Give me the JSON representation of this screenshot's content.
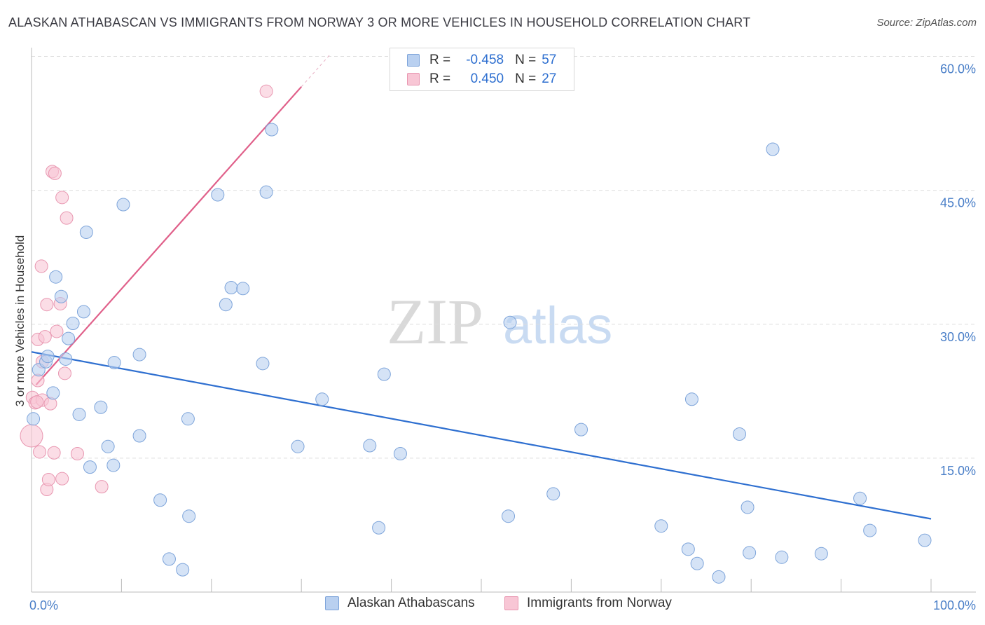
{
  "title": "ALASKAN ATHABASCAN VS IMMIGRANTS FROM NORWAY 3 OR MORE VEHICLES IN HOUSEHOLD CORRELATION CHART",
  "source": "Source: ZipAtlas.com",
  "watermark": {
    "zip": "ZIP",
    "atlas": "atlas"
  },
  "legend_top": [
    {
      "r_label": "R =",
      "r_value": "-0.458",
      "n_label": "N =",
      "n_value": "57"
    },
    {
      "r_label": "R =",
      "r_value": "0.450",
      "n_label": "N =",
      "n_value": "27"
    }
  ],
  "legend_bottom": [
    "Alaskan Athabascans",
    "Immigrants from Norway"
  ],
  "colors": {
    "blue_fill": "#b9d0f0",
    "blue_stroke": "#7da4da",
    "blue_line": "#2e6fd0",
    "pink_fill": "#f8c6d5",
    "pink_stroke": "#e896b0",
    "pink_line": "#e0608a",
    "grid": "#dedede",
    "tick_text": "#4a7fc8"
  },
  "chart_data": {
    "type": "scatter",
    "title": "ALASKAN ATHABASCAN VS IMMIGRANTS FROM NORWAY 3 OR MORE VEHICLES IN HOUSEHOLD CORRELATION CHART",
    "xlabel": "",
    "ylabel": "3 or more Vehicles in Household",
    "xlim": [
      0,
      100
    ],
    "ylim": [
      0,
      60
    ],
    "x_tick_labels": [
      "0.0%",
      "100.0%"
    ],
    "y_ticks": [
      15,
      30,
      45,
      60
    ],
    "y_tick_labels": [
      "15.0%",
      "30.0%",
      "45.0%",
      "60.0%"
    ],
    "grid": true,
    "legend_position": "top-center",
    "series": [
      {
        "name": "Alaskan Athabascans",
        "r": -0.458,
        "n": 57,
        "trend": {
          "x": [
            0,
            100
          ],
          "y": [
            26.9,
            8.2
          ]
        },
        "points": [
          [
            0.2,
            19.4
          ],
          [
            0.8,
            24.9
          ],
          [
            1.6,
            25.8
          ],
          [
            1.8,
            26.4
          ],
          [
            2.4,
            22.3
          ],
          [
            2.7,
            35.3
          ],
          [
            3.3,
            33.1
          ],
          [
            3.8,
            26.1
          ],
          [
            4.1,
            28.4
          ],
          [
            4.6,
            30.1
          ],
          [
            5.3,
            19.9
          ],
          [
            5.8,
            31.4
          ],
          [
            6.1,
            40.3
          ],
          [
            6.5,
            14.0
          ],
          [
            7.7,
            20.7
          ],
          [
            8.5,
            16.3
          ],
          [
            9.1,
            14.2
          ],
          [
            9.2,
            25.7
          ],
          [
            10.2,
            43.4
          ],
          [
            12.0,
            17.5
          ],
          [
            12.0,
            26.6
          ],
          [
            14.3,
            10.3
          ],
          [
            15.3,
            3.7
          ],
          [
            16.8,
            2.5
          ],
          [
            17.5,
            8.5
          ],
          [
            17.4,
            19.4
          ],
          [
            20.7,
            44.5
          ],
          [
            21.6,
            32.2
          ],
          [
            22.2,
            34.1
          ],
          [
            23.5,
            34.0
          ],
          [
            25.7,
            25.6
          ],
          [
            26.1,
            44.8
          ],
          [
            26.7,
            51.8
          ],
          [
            29.6,
            16.3
          ],
          [
            32.3,
            21.6
          ],
          [
            37.6,
            16.4
          ],
          [
            38.6,
            7.2
          ],
          [
            39.2,
            24.4
          ],
          [
            41.0,
            15.5
          ],
          [
            53.0,
            8.5
          ],
          [
            53.2,
            30.2
          ],
          [
            58.0,
            11.0
          ],
          [
            61.1,
            18.2
          ],
          [
            70.0,
            7.4
          ],
          [
            73.0,
            4.8
          ],
          [
            73.4,
            21.6
          ],
          [
            74.0,
            3.2
          ],
          [
            76.4,
            1.7
          ],
          [
            78.7,
            17.7
          ],
          [
            79.6,
            9.5
          ],
          [
            79.8,
            4.4
          ],
          [
            82.4,
            49.6
          ],
          [
            83.4,
            3.9
          ],
          [
            87.8,
            4.3
          ],
          [
            92.1,
            10.5
          ],
          [
            93.2,
            6.9
          ],
          [
            99.3,
            5.8
          ]
        ]
      },
      {
        "name": "Immigrants from Norway",
        "r": 0.45,
        "n": 27,
        "trend": {
          "x": [
            0.5,
            30.0
          ],
          "y": [
            23.2,
            56.6
          ]
        },
        "points": [
          [
            0.0,
            17.5
          ],
          [
            0.1,
            21.8
          ],
          [
            0.4,
            21.2
          ],
          [
            0.7,
            28.3
          ],
          [
            0.7,
            23.7
          ],
          [
            0.9,
            15.7
          ],
          [
            1.1,
            36.5
          ],
          [
            1.5,
            28.6
          ],
          [
            1.2,
            25.8
          ],
          [
            1.2,
            21.5
          ],
          [
            1.7,
            32.2
          ],
          [
            1.7,
            11.5
          ],
          [
            1.9,
            12.6
          ],
          [
            2.1,
            21.1
          ],
          [
            2.3,
            47.1
          ],
          [
            2.5,
            15.6
          ],
          [
            2.6,
            46.9
          ],
          [
            2.8,
            29.2
          ],
          [
            3.2,
            32.3
          ],
          [
            3.4,
            12.7
          ],
          [
            3.4,
            44.2
          ],
          [
            3.7,
            24.5
          ],
          [
            3.9,
            41.9
          ],
          [
            5.1,
            15.5
          ],
          [
            7.8,
            11.8
          ],
          [
            26.1,
            56.1
          ],
          [
            0.6,
            21.3
          ]
        ]
      }
    ]
  }
}
